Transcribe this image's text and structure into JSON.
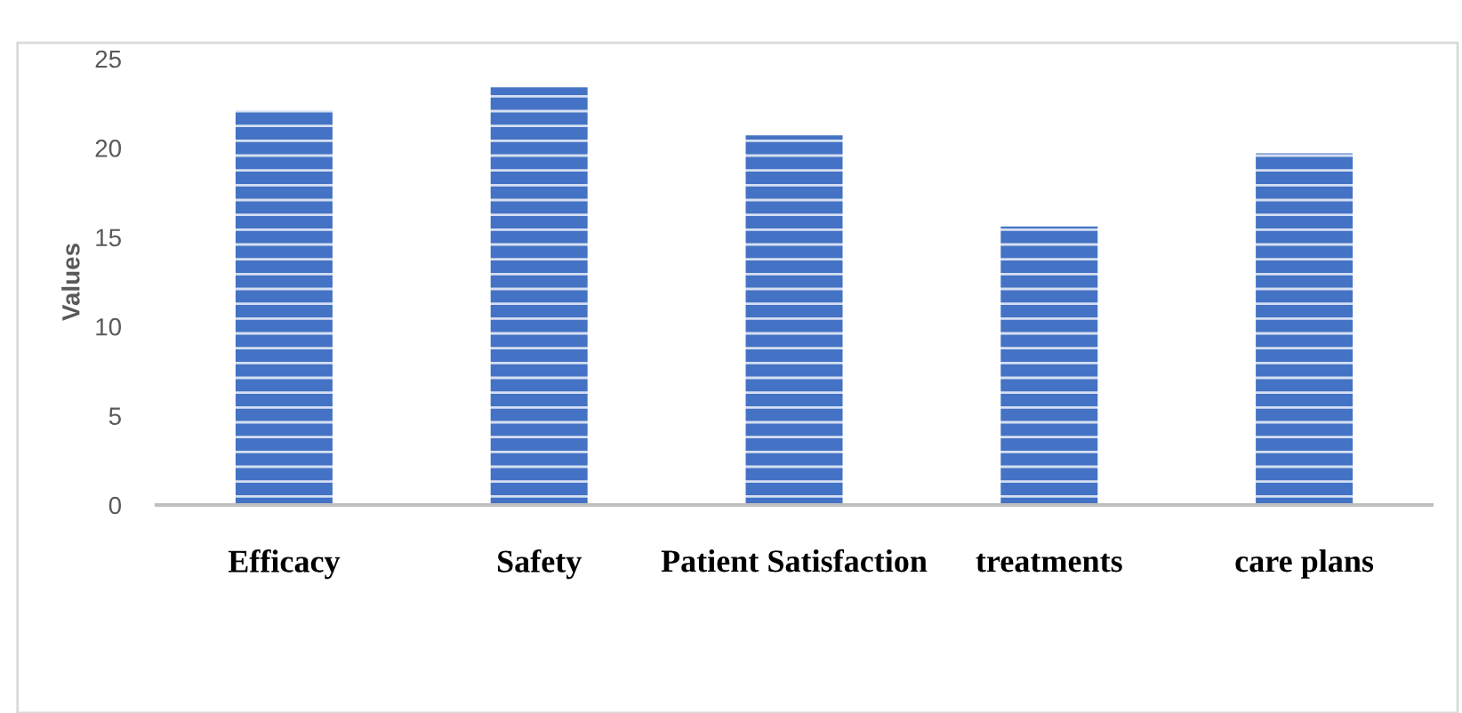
{
  "chart_data": {
    "type": "bar",
    "ylabel": "Values",
    "categories": [
      "Efficacy",
      "Safety",
      "Patient Satisfaction",
      "treatments",
      "care plans"
    ],
    "values": [
      22.1,
      23.4,
      20.7,
      15.6,
      19.7
    ],
    "color": "#4472c4",
    "ylim": [
      0,
      25
    ],
    "yticks": [
      0,
      5,
      10,
      15,
      20,
      25
    ],
    "grid": false
  }
}
